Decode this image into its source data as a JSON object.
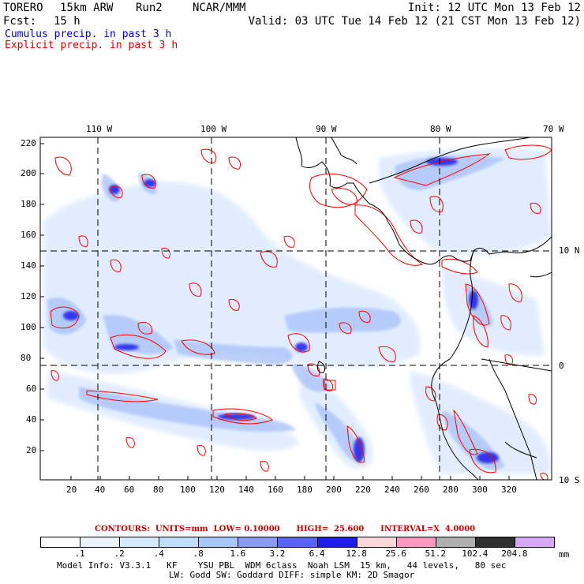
{
  "header": {
    "model": "TORERO",
    "resolution": "15km ARW",
    "run": "Run2",
    "org": "NCAR/MMM",
    "init": "Init: 12 UTC Mon 13 Feb 12",
    "fcst_label": "Fcst:",
    "fcst_value": "15 h",
    "valid": "Valid: 03 UTC Tue 14 Feb 12 (21 CST Mon 13 Feb 12)"
  },
  "fields": {
    "cumulus": "Cumulus precip. in past 3 h",
    "explicit": "Explicit precip. in past 3 h"
  },
  "map": {
    "top_lon_labels": [
      "110 W",
      "100 W",
      "90 W",
      "80 W",
      "70 W"
    ],
    "right_lat_labels": [
      "10 N",
      "0",
      "10 S"
    ],
    "y_ticks": [
      "220",
      "200",
      "180",
      "160",
      "140",
      "120",
      "100",
      "80",
      "60",
      "40",
      "20"
    ],
    "x_ticks": [
      "20",
      "40",
      "60",
      "80",
      "100",
      "120",
      "140",
      "160",
      "180",
      "200",
      "220",
      "240",
      "260",
      "280",
      "300",
      "320"
    ],
    "colors": {
      "cumulus": "#1a1aff",
      "explicit": "#ff0000",
      "coast": "#000000",
      "grid": "#000000"
    }
  },
  "contour_info": {
    "text": "CONTOURS:  UNITS=mm  LOW= 0.10000      HIGH=  25.600      INTERVAL=X  4.0000",
    "color": "#cc0000"
  },
  "colorbar": {
    "labels": [
      ".1",
      ".2",
      ".4",
      ".8",
      "1.6",
      "3.2",
      "6.4",
      "12.8",
      "25.6",
      "51.2",
      "102.4",
      "204.8"
    ],
    "unit": "mm",
    "colors": [
      "#ffffff",
      "#eaf4ff",
      "#d4eaff",
      "#c0deff",
      "#a8c8f8",
      "#8a9cf0",
      "#5a64f0",
      "#1e1ee6",
      "#ffd8dc",
      "#ff99c0",
      "#b0b0b0",
      "#303030",
      "#d8a8f8"
    ]
  },
  "footer": {
    "line1": "Model Info: V3.3.1   KF    YSU PBL  WDM 6class  Noah LSM  15 km,   44 levels,   80 sec",
    "line2": "LW: Godd SW: Goddard DIFF: simple KM: 2D Smagor"
  }
}
